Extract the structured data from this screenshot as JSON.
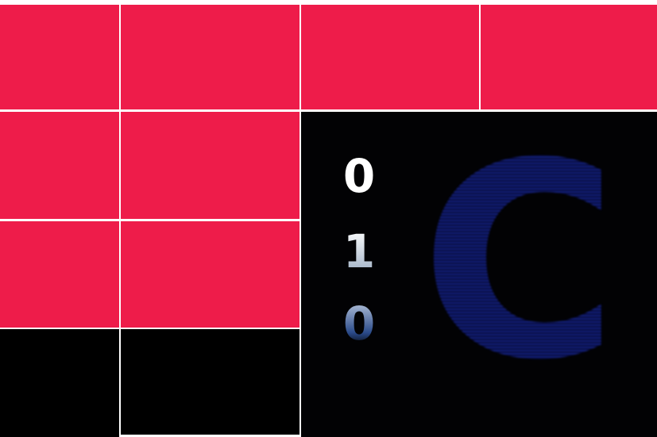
{
  "panel": {
    "digits": [
      "0",
      "1",
      "0"
    ],
    "logo": "C"
  }
}
